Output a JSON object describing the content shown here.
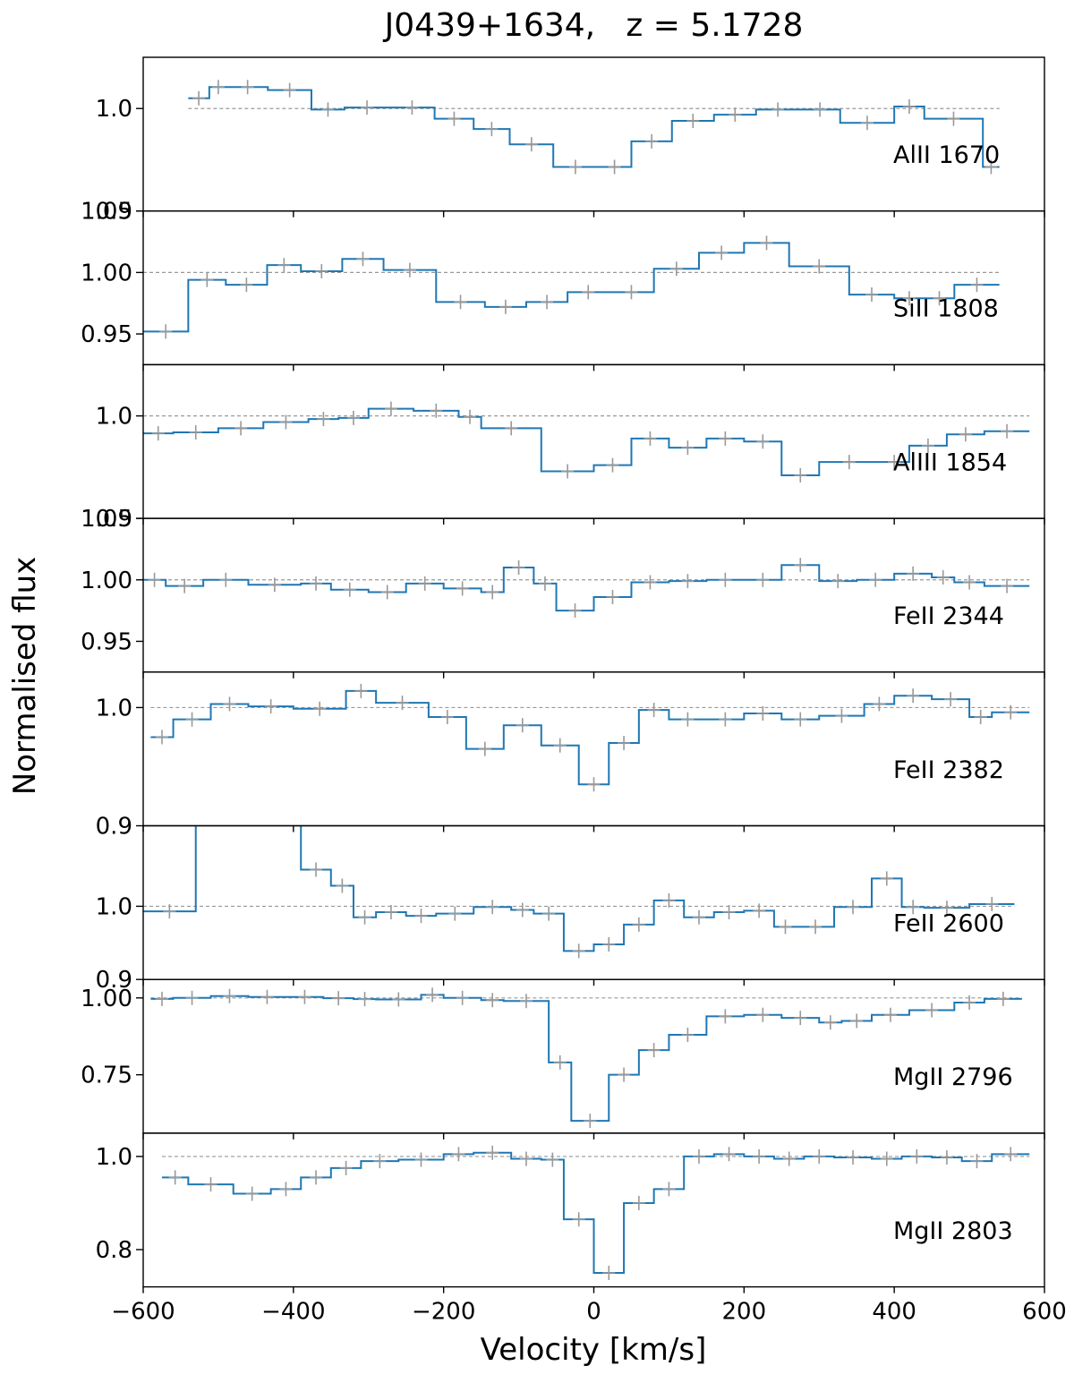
{
  "chart_data": {
    "type": "line",
    "step": true,
    "title": "J0439+1634,   z = 5.1728",
    "xlabel": "Velocity [km/s]",
    "ylabel": "Normalised flux",
    "xlim": [
      -600,
      600
    ],
    "xticks": [
      -600,
      -400,
      -200,
      0,
      200,
      400,
      600
    ],
    "xtick_labels": [
      "−600",
      "−400",
      "−200",
      "0",
      "200",
      "400",
      "600"
    ],
    "grid": false,
    "colors": {
      "flux": "#1f77b4",
      "errors": "#999999",
      "continuum": "#999999"
    },
    "panels": [
      {
        "line": "AlII 1670",
        "ylim": [
          0.9,
          1.05
        ],
        "yticks": [
          0.9,
          1.0
        ],
        "ytick_labels": [
          "0.9",
          "1.0"
        ],
        "x": [
          -540,
          -504,
          -468,
          -432,
          -396,
          -360,
          -324,
          -288,
          -252,
          -216,
          -180,
          -144,
          -108,
          -72,
          -36,
          0,
          12,
          48,
          84,
          120,
          156,
          192,
          228,
          264,
          300,
          336,
          372,
          408,
          444,
          480,
          516,
          540
        ],
        "y": [
          1.01,
          1.02,
          1.021,
          1.02,
          1.018,
          0.999,
          0.999,
          1.001,
          1.001,
          0.99,
          0.99,
          0.98,
          0.98,
          0.965,
          0.965,
          0.943,
          0.943,
          0.968,
          0.968,
          0.988,
          0.988,
          0.994,
          0.994,
          0.999,
          0.999,
          0.986,
          0.986,
          1.002,
          1.002,
          0.99,
          0.99,
          0.943
        ],
        "stepx": [
          -540,
          -512,
          -488,
          -434,
          -376,
          -332,
          -272,
          -212,
          -160,
          -112,
          -54,
          5,
          50,
          104,
          160,
          216,
          274,
          328,
          400,
          440,
          518,
          540
        ],
        "stepy": [
          1.01,
          1.021,
          1.021,
          1.018,
          0.999,
          1.001,
          1.001,
          0.99,
          0.98,
          0.965,
          0.943,
          0.943,
          0.968,
          0.988,
          0.994,
          0.999,
          0.999,
          0.986,
          1.002,
          0.99,
          0.943
        ]
      },
      {
        "line": "SiII 1808",
        "ylim": [
          0.925,
          1.05
        ],
        "yticks": [
          0.95,
          1.0,
          1.05
        ],
        "ytick_labels": [
          "0.95",
          "1.00",
          "1.05"
        ],
        "stepx": [
          -600,
          -540,
          -490,
          -435,
          -390,
          -335,
          -280,
          -210,
          -145,
          -90,
          -35,
          20,
          80,
          140,
          200,
          260,
          340,
          400,
          440,
          480,
          540
        ],
        "stepy": [
          0.952,
          0.994,
          0.99,
          1.006,
          1.001,
          1.011,
          1.002,
          0.976,
          0.972,
          0.976,
          0.984,
          0.984,
          1.003,
          1.016,
          1.024,
          1.005,
          0.982,
          0.979,
          0.979,
          0.99
        ]
      },
      {
        "line": "AlIII 1854",
        "ylim": [
          0.9,
          1.05
        ],
        "yticks": [
          0.9,
          1.0
        ],
        "ytick_labels": [
          "0.9",
          "1.0"
        ],
        "stepx": [
          -600,
          -560,
          -500,
          -440,
          -380,
          -340,
          -300,
          -240,
          -180,
          -150,
          -70,
          0,
          50,
          100,
          150,
          200,
          250,
          300,
          380,
          420,
          470,
          520,
          580
        ],
        "stepy": [
          0.983,
          0.984,
          0.988,
          0.994,
          0.997,
          0.998,
          1.007,
          1.005,
          0.999,
          0.988,
          0.946,
          0.952,
          0.978,
          0.969,
          0.978,
          0.975,
          0.942,
          0.955,
          0.955,
          0.971,
          0.982,
          0.985
        ]
      },
      {
        "line": "FeII 2344",
        "ylim": [
          0.925,
          1.05
        ],
        "yticks": [
          0.95,
          1.0,
          1.05
        ],
        "ytick_labels": [
          "0.95",
          "1.00",
          "1.05"
        ],
        "stepx": [
          -600,
          -570,
          -520,
          -460,
          -390,
          -350,
          -300,
          -250,
          -200,
          -150,
          -120,
          -80,
          -50,
          0,
          50,
          100,
          150,
          200,
          250,
          300,
          350,
          400,
          450,
          480,
          520,
          580
        ],
        "stepy": [
          1.0,
          0.995,
          1.0,
          0.996,
          0.997,
          0.992,
          0.99,
          0.997,
          0.993,
          0.99,
          1.01,
          0.997,
          0.975,
          0.986,
          0.998,
          0.999,
          1.0,
          1.0,
          1.012,
          0.999,
          1.0,
          1.005,
          1.002,
          0.998,
          0.995
        ]
      },
      {
        "line": "FeII 2382",
        "ylim": [
          0.9,
          1.03
        ],
        "yticks": [
          0.9,
          1.0
        ],
        "ytick_labels": [
          "0.9",
          "1.0"
        ],
        "stepx": [
          -590,
          -560,
          -510,
          -460,
          -400,
          -330,
          -290,
          -220,
          -170,
          -120,
          -70,
          -20,
          20,
          60,
          100,
          150,
          200,
          250,
          300,
          360,
          400,
          450,
          500,
          530,
          580
        ],
        "stepy": [
          0.975,
          0.99,
          1.003,
          1.001,
          0.999,
          1.014,
          1.004,
          0.992,
          0.965,
          0.985,
          0.968,
          0.935,
          0.97,
          0.998,
          0.99,
          0.99,
          0.995,
          0.99,
          0.993,
          1.003,
          1.01,
          1.007,
          0.992,
          0.996
        ]
      },
      {
        "line": "FeII 2600",
        "ylim": [
          0.9,
          1.11
        ],
        "yticks": [
          0.9,
          1.0
        ],
        "ytick_labels": [
          "0.9",
          "1.0"
        ],
        "stepx": [
          -600,
          -530,
          -390,
          -350,
          -320,
          -290,
          -250,
          -210,
          -160,
          -110,
          -80,
          -40,
          0,
          40,
          80,
          120,
          160,
          200,
          240,
          270,
          320,
          370,
          410,
          440,
          500,
          560
        ],
        "stepy": [
          0.993,
          1.12,
          1.05,
          1.028,
          0.985,
          0.992,
          0.987,
          0.99,
          0.999,
          0.995,
          0.99,
          0.939,
          0.948,
          0.975,
          1.008,
          0.985,
          0.992,
          0.994,
          0.972,
          0.972,
          0.999,
          1.038,
          0.999,
          0.998,
          1.003
        ]
      },
      {
        "line": "MgII 2796",
        "ylim": [
          0.56,
          1.06
        ],
        "yticks": [
          0.75,
          1.0
        ],
        "ytick_labels": [
          "0.75",
          "1.00"
        ],
        "stepx": [
          -590,
          -560,
          -510,
          -460,
          -410,
          -360,
          -320,
          -290,
          -230,
          -200,
          -150,
          -120,
          -60,
          -30,
          20,
          60,
          100,
          150,
          200,
          250,
          300,
          330,
          370,
          420,
          480,
          520,
          570
        ],
        "stepy": [
          0.997,
          1.0,
          1.006,
          1.003,
          1.003,
          0.999,
          0.996,
          0.995,
          1.01,
          1.0,
          0.993,
          0.99,
          0.79,
          0.6,
          0.75,
          0.83,
          0.88,
          0.94,
          0.945,
          0.935,
          0.92,
          0.925,
          0.945,
          0.96,
          0.985,
          0.997
        ]
      },
      {
        "line": "MgII 2803",
        "ylim": [
          0.72,
          1.05
        ],
        "yticks": [
          0.8,
          1.0
        ],
        "ytick_labels": [
          "0.8",
          "1.0"
        ],
        "stepx": [
          -575,
          -540,
          -480,
          -430,
          -390,
          -350,
          -310,
          -260,
          -200,
          -160,
          -110,
          -70,
          -40,
          0,
          40,
          80,
          120,
          160,
          200,
          240,
          280,
          320,
          370,
          410,
          450,
          490,
          530,
          580
        ],
        "stepy": [
          0.955,
          0.94,
          0.92,
          0.93,
          0.955,
          0.975,
          0.99,
          0.993,
          1.005,
          1.008,
          0.995,
          0.993,
          0.865,
          0.75,
          0.9,
          0.93,
          1.0,
          1.005,
          1.0,
          0.995,
          1.0,
          0.998,
          0.995,
          1.0,
          0.998,
          0.99,
          1.005
        ]
      }
    ]
  }
}
